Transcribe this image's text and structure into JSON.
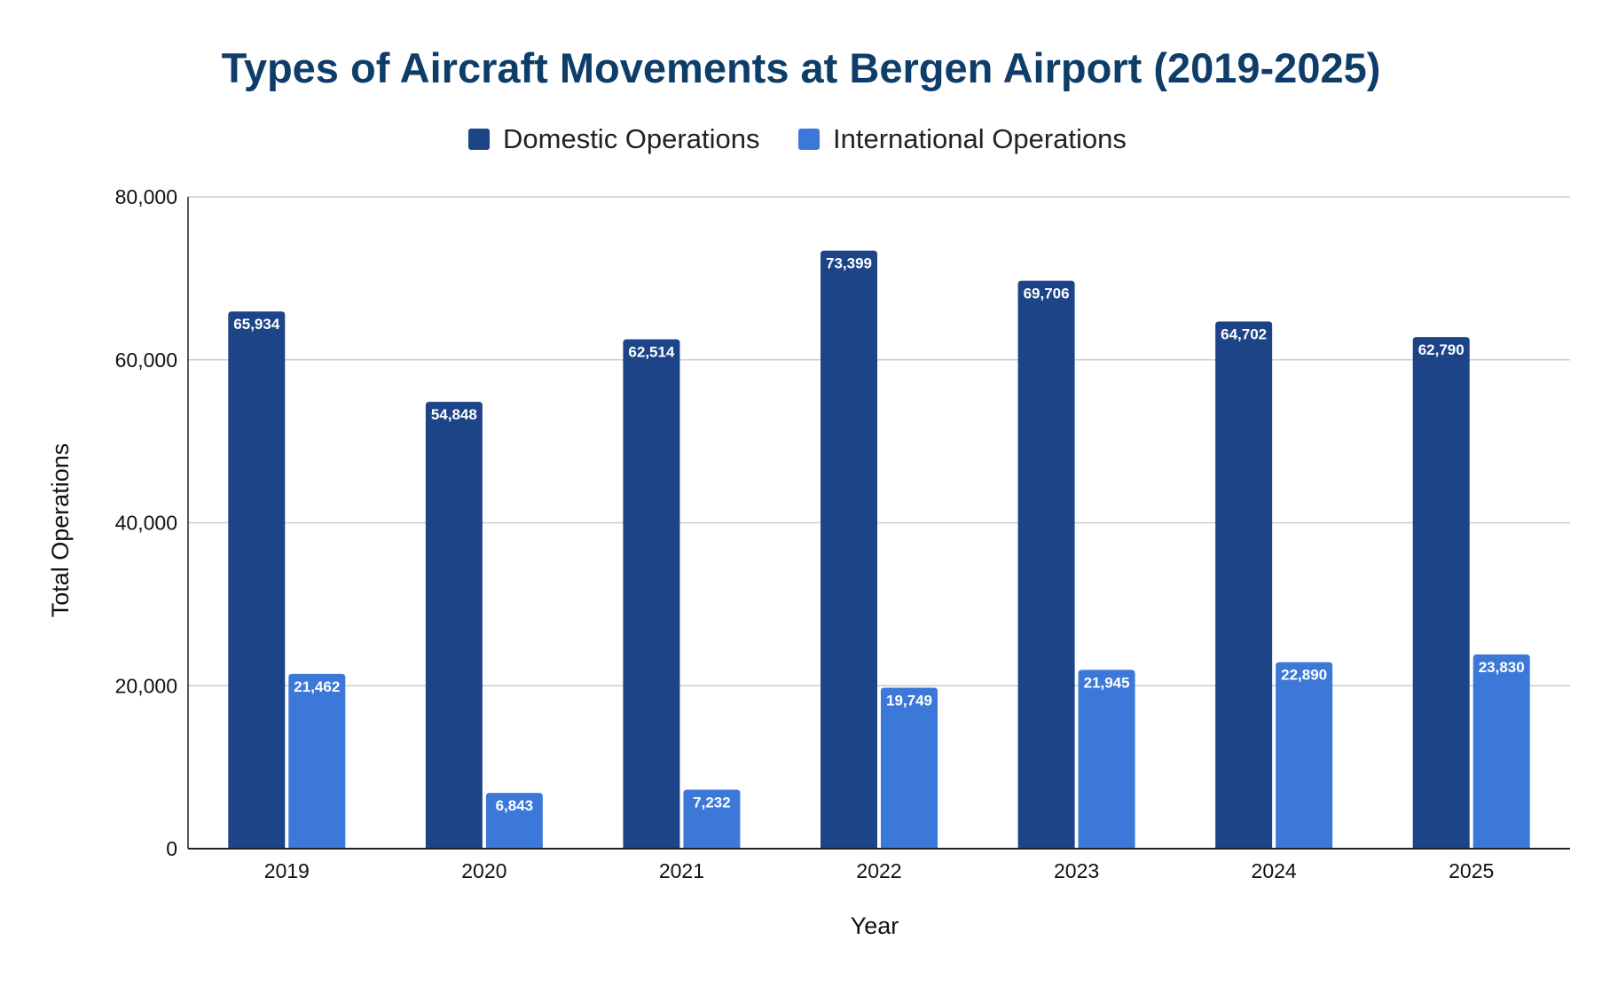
{
  "chart_data": {
    "type": "bar",
    "title": "Types of Aircraft Movements at Bergen Airport (2019-2025)",
    "xlabel": "Year",
    "ylabel": "Total Operations",
    "categories": [
      "2019",
      "2020",
      "2021",
      "2022",
      "2023",
      "2024",
      "2025"
    ],
    "series": [
      {
        "name": "Domestic Operations",
        "color": "#1d4487",
        "values": [
          65934,
          54848,
          62514,
          73399,
          69706,
          64702,
          62790
        ],
        "labels": [
          "65,934",
          "54,848",
          "62,514",
          "73,399",
          "69,706",
          "64,702",
          "62,790"
        ]
      },
      {
        "name": "International Operations",
        "color": "#3b78d8",
        "values": [
          21462,
          6843,
          7232,
          19749,
          21945,
          22890,
          23830
        ],
        "labels": [
          "21,462",
          "6,843",
          "7,232",
          "19,749",
          "21,945",
          "22,890",
          "23,830"
        ]
      }
    ],
    "ylim": [
      0,
      80000
    ],
    "yticks": [
      0,
      20000,
      40000,
      60000,
      80000
    ],
    "ytick_labels": [
      "0",
      "20,000",
      "40,000",
      "60,000",
      "80,000"
    ],
    "grid": true,
    "legend": "top-center",
    "title_color": "#0e3d69",
    "gridline_color": "#cccccc",
    "axis_color": "#222222"
  }
}
